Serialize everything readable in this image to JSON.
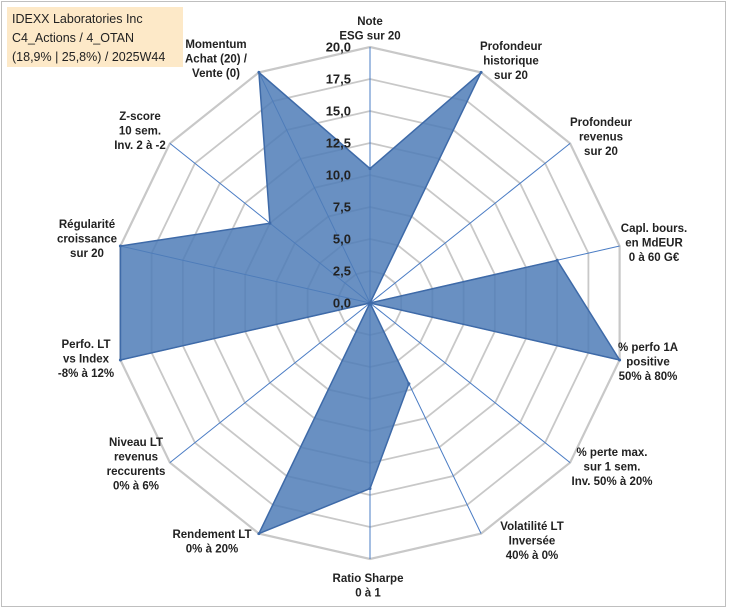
{
  "colors": {
    "background": "#ffffff",
    "title_box": "#fde9c8",
    "grid": "#c8c8c8",
    "spoke": "#4a7cc4",
    "series_fill": "#4f7db7",
    "series_stroke": "#3e6aa8"
  },
  "title": {
    "line1": "IDEXX Laboratories Inc",
    "line2": "C4_Actions / 4_OTAN",
    "line3": "(18,9% | 25,8%) / 2025W44"
  },
  "chart_data": {
    "type": "radar",
    "scale_min": 0,
    "scale_max": 20,
    "scale_step": 2.5,
    "grid_levels": 8,
    "tick_labels": [
      "0,0",
      "2,5",
      "5,0",
      "7,5",
      "10,0",
      "12,5",
      "15,0",
      "17,5",
      "20,0"
    ],
    "axes": [
      {
        "label": [
          "Note",
          "ESG sur 20"
        ],
        "value": 10.5
      },
      {
        "label": [
          "Profondeur",
          "historique",
          "sur 20"
        ],
        "value": 20
      },
      {
        "label": [
          "Profondeur",
          "revenus",
          "sur 20"
        ],
        "value": 0
      },
      {
        "label": [
          "Capl. bours.",
          "en MdEUR",
          "0 à 60 G€"
        ],
        "value": 15
      },
      {
        "label": [
          "% perfo 1A",
          "positive",
          "50% à 80%"
        ],
        "value": 20
      },
      {
        "label": [
          "% perte max.",
          "sur 1 sem.",
          "Inv. 50% à 20%"
        ],
        "value": 0
      },
      {
        "label": [
          "Volatilité LT",
          "Inversée",
          "40% à 0%"
        ],
        "value": 7
      },
      {
        "label": [
          "Ratio Sharpe",
          "0 à 1"
        ],
        "value": 14.5
      },
      {
        "label": [
          "Rendement LT",
          "0% à 20%"
        ],
        "value": 20
      },
      {
        "label": [
          "Niveau LT",
          "revenus",
          "reccurents",
          "0% à 6%"
        ],
        "value": 0
      },
      {
        "label": [
          "Perfo. LT",
          "vs Index",
          "-8% à 12%"
        ],
        "value": 20
      },
      {
        "label": [
          "Régularité",
          "croissance",
          "sur 20"
        ],
        "value": 20
      },
      {
        "label": [
          "Z-score",
          "10 sem.",
          "Inv. 2 à -2"
        ],
        "value": 10
      },
      {
        "label": [
          "Momentum",
          "Achat (20) /",
          "Vente (0)"
        ],
        "value": 20
      }
    ]
  }
}
